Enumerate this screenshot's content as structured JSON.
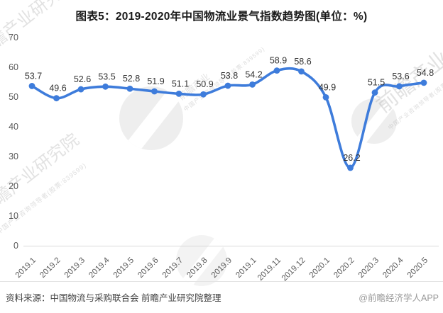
{
  "chart_data": {
    "type": "line",
    "title": "图表5：2019-2020年中国物流业景气指数趋势图(单位：%)",
    "x": [
      "2019.1",
      "2019.2",
      "2019.3",
      "2019.4",
      "2019.5",
      "2019.6",
      "2019.7",
      "2019.8",
      "2019.9",
      "2019.1",
      "2019.11",
      "2019.12",
      "2020.1",
      "2020.2",
      "2020.3",
      "2020.4",
      "2020.5"
    ],
    "values": [
      53.7,
      49.6,
      52.6,
      53.5,
      52.8,
      51.9,
      51.1,
      50.9,
      53.8,
      54.2,
      58.9,
      58.6,
      49.9,
      26.2,
      51.5,
      53.6,
      54.8
    ],
    "xlabel": "",
    "ylabel": "",
    "ylim": [
      0,
      70
    ],
    "yticks": [
      0,
      10,
      20,
      30,
      40,
      50,
      60,
      70
    ],
    "grid": false,
    "legend": false,
    "marker": "circle",
    "data_labels": true,
    "line_color": "#3E7CDB",
    "data_label_color": "#333333",
    "axis_label_color": "#595959",
    "axis_line_color": "#D9D9D9"
  },
  "footer": {
    "source": "资料来源：中国物流与采购联合会 前瞻产业研究院整理",
    "credit": "@前瞻经济学人APP"
  },
  "watermarks": {
    "brand": "前瞻产业研究院",
    "brand_short": "前瞻产业",
    "tagline": "中国产业咨询领导者(股票:839599)"
  }
}
